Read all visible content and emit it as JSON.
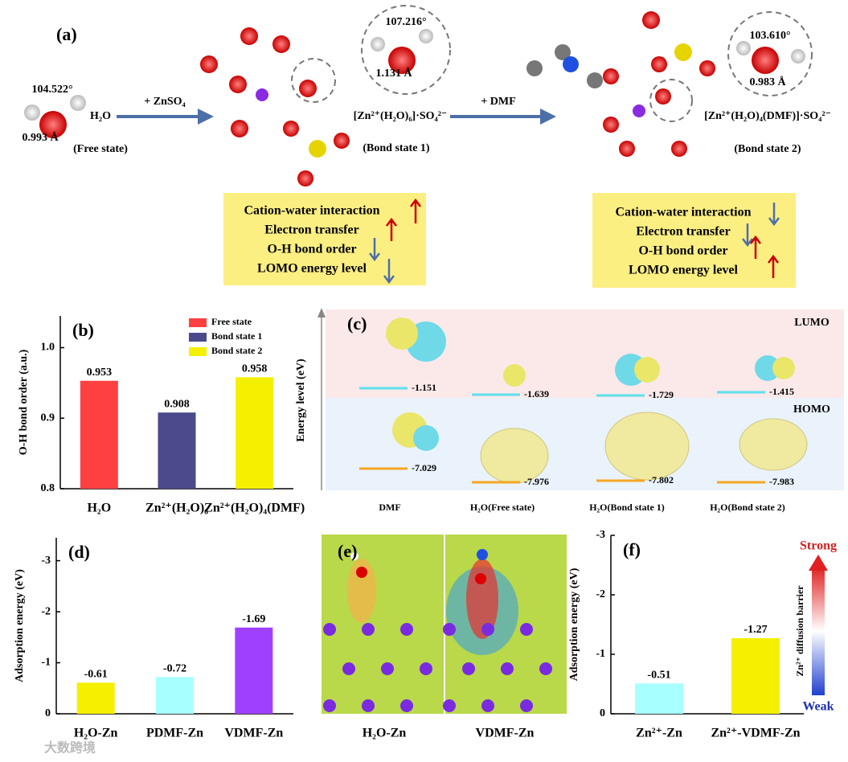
{
  "panel_a": {
    "label": "(a)",
    "free": {
      "angle": "104.522°",
      "length": "0.993 Å",
      "formula": "H₂O",
      "state": "(Free state)"
    },
    "step1": "+ ZnSO₄",
    "bond1": {
      "angle": "107.216°",
      "length": "1.131 Å",
      "formula": "[Zn²⁺(H₂O)₆]·SO₄²⁻",
      "state": "(Bond state 1)"
    },
    "step2": "+ DMF",
    "bond2": {
      "angle": "103.610°",
      "length": "0.983 Å",
      "formula": "[Zn²⁺(H₂O)₄(DMF)]·SO₄²⁻",
      "state": "(Bond state 2)"
    },
    "box1": [
      "Cation-water interaction",
      "Electron transfer",
      "O-H bond order",
      "LOMO energy level"
    ],
    "box2": [
      "Cation-water interaction",
      "Electron transfer",
      "O-H bond order",
      "LOMO energy level"
    ]
  },
  "panel_c": {
    "label": "(c)",
    "y_label": "Energy level (eV)",
    "lumo": "LUMO",
    "homo": "HOMO",
    "columns": [
      {
        "name": "DMF",
        "lumo": -1.151,
        "homo": -7.029
      },
      {
        "name": "H₂O(Free state)",
        "lumo": -1.639,
        "homo": -7.976
      },
      {
        "name": "H₂O(Bond state 1)",
        "lumo": -1.729,
        "homo": -7.802
      },
      {
        "name": "H₂O(Bond state 2)",
        "lumo": -1.415,
        "homo": -7.983
      }
    ]
  },
  "panel_e": {
    "label": "(e)",
    "labels": [
      "H₂O-Zn",
      "VDMF-Zn"
    ]
  },
  "watermark": "大数跨境",
  "chart_data": [
    {
      "type": "bar",
      "panel_label": "(b)",
      "y_label": "O-H bond order (a.u.)",
      "categories": [
        "H₂O",
        "Zn²⁺(H₂O)₆",
        "Zn²⁺(H₂O)₄(DMF)"
      ],
      "series": [
        {
          "name": "Free state",
          "color": "#ff4040",
          "values": [
            0.953,
            null,
            null
          ]
        },
        {
          "name": "Bond state 1",
          "color": "#4a4a8c",
          "values": [
            null,
            0.908,
            null
          ]
        },
        {
          "name": "Bond state 2",
          "color": "#f5f000",
          "values": [
            null,
            null,
            0.958
          ]
        }
      ],
      "ylim": [
        0.8,
        1.045
      ],
      "yticks": [
        0.8,
        0.9,
        {
          "value": 1,
          "label": "1.0"
        }
      ],
      "legend": "top-right"
    },
    {
      "type": "bar",
      "panel_label": "(d)",
      "y_label": "Adsorption energy (eV)",
      "categories": [
        "H₂O-Zn",
        "PDMF-Zn",
        "VDMF-Zn"
      ],
      "values": [
        -0.61,
        -0.72,
        -1.69
      ],
      "colors": [
        "#f5f000",
        "#a8ffff",
        "#a040ff"
      ],
      "ylim": [
        0,
        -3.45
      ],
      "yticks": [
        0,
        -1,
        -2,
        -3
      ]
    },
    {
      "type": "bar",
      "panel_label": "(f)",
      "y_label": "Adsorption energy (eV)",
      "categories": [
        "Zn²⁺-Zn",
        "Zn²⁺-VDMF-Zn"
      ],
      "values": [
        -0.51,
        -1.27
      ],
      "colors": [
        "#a8ffff",
        "#f5f000"
      ],
      "ylim": [
        0,
        -3
      ],
      "yticks": [
        0,
        -1,
        -2,
        -3
      ],
      "annotations": [
        "Strong",
        "Weak",
        "Zn²⁺ diffusion barrier"
      ]
    }
  ]
}
